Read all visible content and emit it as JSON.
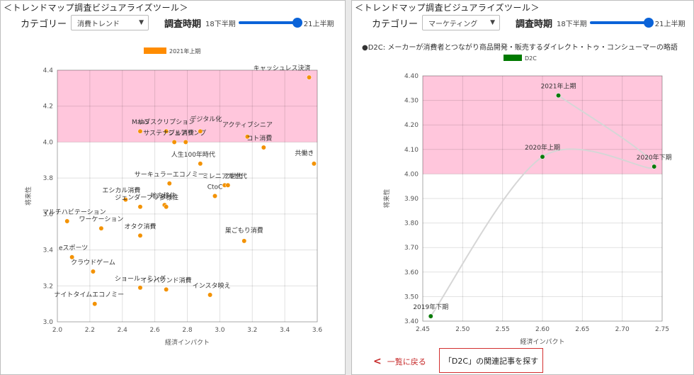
{
  "left": {
    "tool_title": "＜トレンドマップ調査ビジュアライズツール＞",
    "category_label": "カテゴリー",
    "category_value": "消費トレンド",
    "period_label": "調査時期",
    "period_start": "18下半期",
    "period_end": "21上半期",
    "chart_data": {
      "type": "scatter",
      "legend": "2021年上期",
      "legend_color": "#ff8c00",
      "point_color": "#f39200",
      "highlight_color": "#ffc6dc",
      "highlight_y": [
        4.0,
        4.4
      ],
      "xlabel": "経済インパクト",
      "ylabel": "将来性",
      "xlim": [
        2.0,
        3.6
      ],
      "ylim": [
        3.0,
        4.4
      ],
      "xticks": [
        "2.0",
        "2.2",
        "2.4",
        "2.6",
        "2.8",
        "3.0",
        "3.2",
        "3.4",
        "3.6"
      ],
      "yticks": [
        "3.0",
        "3.2",
        "3.4",
        "3.6",
        "3.8",
        "4.0",
        "4.2",
        "4.4"
      ],
      "points": [
        {
          "label": "キャッシュレス決済",
          "x": 3.55,
          "y": 4.36
        },
        {
          "label": "MaaS",
          "x": 2.51,
          "y": 4.06
        },
        {
          "label": "サブスクリプション",
          "x": 2.67,
          "y": 4.06
        },
        {
          "label": "サステナブル消費",
          "x": 2.72,
          "y": 4.0
        },
        {
          "label": "シェアリング",
          "x": 2.79,
          "y": 4.0
        },
        {
          "label": "デジタル化",
          "x": 2.88,
          "y": 4.06
        },
        {
          "label": "アクティブシニア",
          "x": 3.17,
          "y": 4.03
        },
        {
          "label": "コト消費",
          "x": 3.27,
          "y": 3.97
        },
        {
          "label": "共働き",
          "x": 3.58,
          "y": 3.88
        },
        {
          "label": "人生100年時代",
          "x": 2.88,
          "y": 3.88
        },
        {
          "label": "サーキュラーエコノミー",
          "x": 2.69,
          "y": 3.77
        },
        {
          "label": "ミレニアル世代",
          "x": 3.03,
          "y": 3.76
        },
        {
          "label": "Z世代",
          "x": 3.05,
          "y": 3.76
        },
        {
          "label": "CtoC",
          "x": 2.97,
          "y": 3.7
        },
        {
          "label": "エシカル消費",
          "x": 2.42,
          "y": 3.68
        },
        {
          "label": "ジェンダーフリー",
          "x": 2.51,
          "y": 3.64
        },
        {
          "label": "地方移住",
          "x": 2.66,
          "y": 3.65
        },
        {
          "label": "多様性",
          "x": 2.67,
          "y": 3.64
        },
        {
          "label": "マルチハビテーション",
          "x": 2.06,
          "y": 3.56
        },
        {
          "label": "ワーケーション",
          "x": 2.27,
          "y": 3.52
        },
        {
          "label": "オタク消費",
          "x": 2.51,
          "y": 3.48
        },
        {
          "label": "巣ごもり消費",
          "x": 3.15,
          "y": 3.45
        },
        {
          "label": "eスポーツ",
          "x": 2.09,
          "y": 3.36
        },
        {
          "label": "クラウドゲーム",
          "x": 2.22,
          "y": 3.28
        },
        {
          "label": "ショールーミング",
          "x": 2.51,
          "y": 3.19
        },
        {
          "label": "インバウンド消費",
          "x": 2.67,
          "y": 3.18
        },
        {
          "label": "インスタ映え",
          "x": 2.94,
          "y": 3.15
        },
        {
          "label": "ナイトタイムエコノミー",
          "x": 2.23,
          "y": 3.1
        }
      ]
    }
  },
  "right": {
    "tool_title": "＜トレンドマップ調査ビジュアライズツール＞",
    "category_label": "カテゴリー",
    "category_value": "マーケティング",
    "period_label": "調査時期",
    "period_start": "18下半期",
    "period_end": "21上半期",
    "description": "●D2C: メーカーが消費者とつながり商品開発・販売するダイレクト・トゥ・コンシューマーの略語",
    "chart_data": {
      "type": "line",
      "legend": "D2C",
      "legend_color": "#007a00",
      "point_color": "#0a7a0a",
      "line_color": "#d6d6d6",
      "highlight_color": "#ffc6dc",
      "highlight_y": [
        4.0,
        4.4
      ],
      "xlabel": "経済インパクト",
      "ylabel": "将来性",
      "xlim": [
        2.45,
        2.75
      ],
      "ylim": [
        3.4,
        4.4
      ],
      "xticks": [
        "2.45",
        "2.50",
        "2.55",
        "2.60",
        "2.65",
        "2.70",
        "2.75"
      ],
      "yticks": [
        "3.40",
        "3.50",
        "3.60",
        "3.70",
        "3.80",
        "3.90",
        "4.00",
        "4.10",
        "4.20",
        "4.30",
        "4.40"
      ],
      "points": [
        {
          "label": "2019年下期",
          "x": 2.46,
          "y": 3.42
        },
        {
          "label": "2020年上期",
          "x": 2.6,
          "y": 4.07
        },
        {
          "label": "2020年下期",
          "x": 2.74,
          "y": 4.03
        },
        {
          "label": "2021年上期",
          "x": 2.62,
          "y": 4.32
        }
      ]
    },
    "back_label": "一覧に戻る",
    "related_button_label": "「D2C」の関連記事を探す"
  }
}
